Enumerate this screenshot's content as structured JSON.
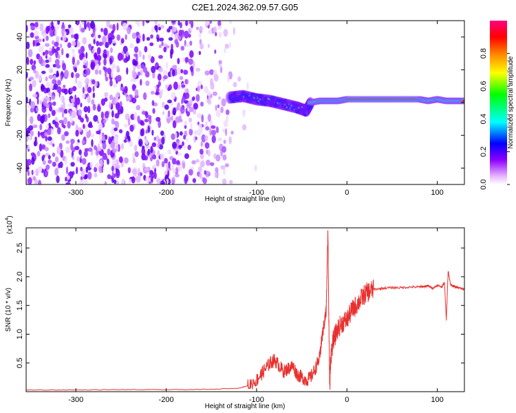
{
  "figure": {
    "title": "C2E1.2024.362.09.57.G05"
  },
  "chart_data": [
    {
      "type": "heatmap",
      "title": "C2E1.2024.362.09.57.G05",
      "xlabel": "Height of straight line (km)",
      "ylabel": "Frequency (Hz)",
      "xlim": [
        -355,
        130
      ],
      "ylim": [
        -50,
        50
      ],
      "xticks": [
        -300,
        -200,
        -100,
        0,
        100
      ],
      "yticks": [
        -40,
        -20,
        0,
        20,
        40
      ],
      "grid": false,
      "colorbar": {
        "label": "Normalized spectral amplitude",
        "range": [
          0,
          1
        ],
        "ticks": [
          0.0,
          0.2,
          0.4,
          0.6,
          0.8
        ],
        "colormap": [
          "#ffffff",
          "#e080ff",
          "#8000ff",
          "#0000ff",
          "#00ffff",
          "#00ff00",
          "#ffff00",
          "#ff8000",
          "#ff0000",
          "#ff00ff"
        ]
      },
      "description_points": {
        "noise_region": {
          "x_range": [
            -355,
            -130
          ],
          "freq_range": [
            -50,
            50
          ],
          "amplitude": 0.15
        },
        "signal_track": {
          "x": [
            -130,
            -115,
            -100,
            -85,
            -70,
            -55,
            -45,
            -40,
            -30,
            -20,
            -10,
            0,
            20,
            40,
            60,
            80,
            90,
            100,
            110,
            120,
            130
          ],
          "freq": [
            3,
            4,
            2,
            1,
            -1,
            -3,
            -5,
            0,
            1,
            1,
            1,
            2,
            2,
            2,
            2,
            2,
            1,
            2,
            1,
            1,
            1
          ],
          "amplitude": [
            0.4,
            0.45,
            0.5,
            0.5,
            0.5,
            0.45,
            0.4,
            0.8,
            0.9,
            0.9,
            0.9,
            0.95,
            0.95,
            0.95,
            0.95,
            0.95,
            0.8,
            0.9,
            0.75,
            0.85,
            0.9
          ]
        }
      }
    },
    {
      "type": "line",
      "xlabel": "Height of straight line (km)",
      "ylabel": "SNR (10 * v/v)",
      "yscale_label": "(x10",
      "yscale_exp": "4",
      "xlim": [
        -355,
        130
      ],
      "ylim": [
        0,
        2.85
      ],
      "xticks": [
        -300,
        -200,
        -100,
        0,
        100
      ],
      "yticks": [
        0.5,
        1.0,
        1.5,
        2.0,
        2.5
      ],
      "grid": false,
      "series": [
        {
          "color": "#e8302e",
          "x": [
            -355,
            -300,
            -250,
            -200,
            -150,
            -120,
            -110,
            -100,
            -95,
            -90,
            -85,
            -80,
            -75,
            -70,
            -65,
            -60,
            -55,
            -50,
            -45,
            -40,
            -35,
            -30,
            -28,
            -25,
            -23,
            -21,
            -20,
            -19,
            -18,
            -15,
            -10,
            -5,
            0,
            5,
            10,
            15,
            20,
            25,
            30,
            40,
            50,
            60,
            70,
            80,
            85,
            90,
            95,
            100,
            105,
            108,
            110,
            112,
            115,
            120,
            125,
            130
          ],
          "y": [
            0.03,
            0.03,
            0.035,
            0.035,
            0.04,
            0.06,
            0.1,
            0.2,
            0.3,
            0.4,
            0.5,
            0.55,
            0.45,
            0.35,
            0.4,
            0.45,
            0.3,
            0.25,
            0.2,
            0.25,
            0.4,
            0.6,
            0.9,
            1.2,
            1.4,
            2.8,
            1.2,
            0.1,
            0.6,
            0.9,
            1.1,
            1.2,
            1.25,
            1.4,
            1.5,
            1.6,
            1.7,
            1.75,
            1.78,
            1.8,
            1.81,
            1.81,
            1.82,
            1.82,
            1.83,
            1.84,
            1.8,
            1.85,
            1.82,
            1.9,
            1.25,
            2.1,
            1.85,
            1.82,
            1.8,
            1.78
          ]
        }
      ]
    }
  ]
}
